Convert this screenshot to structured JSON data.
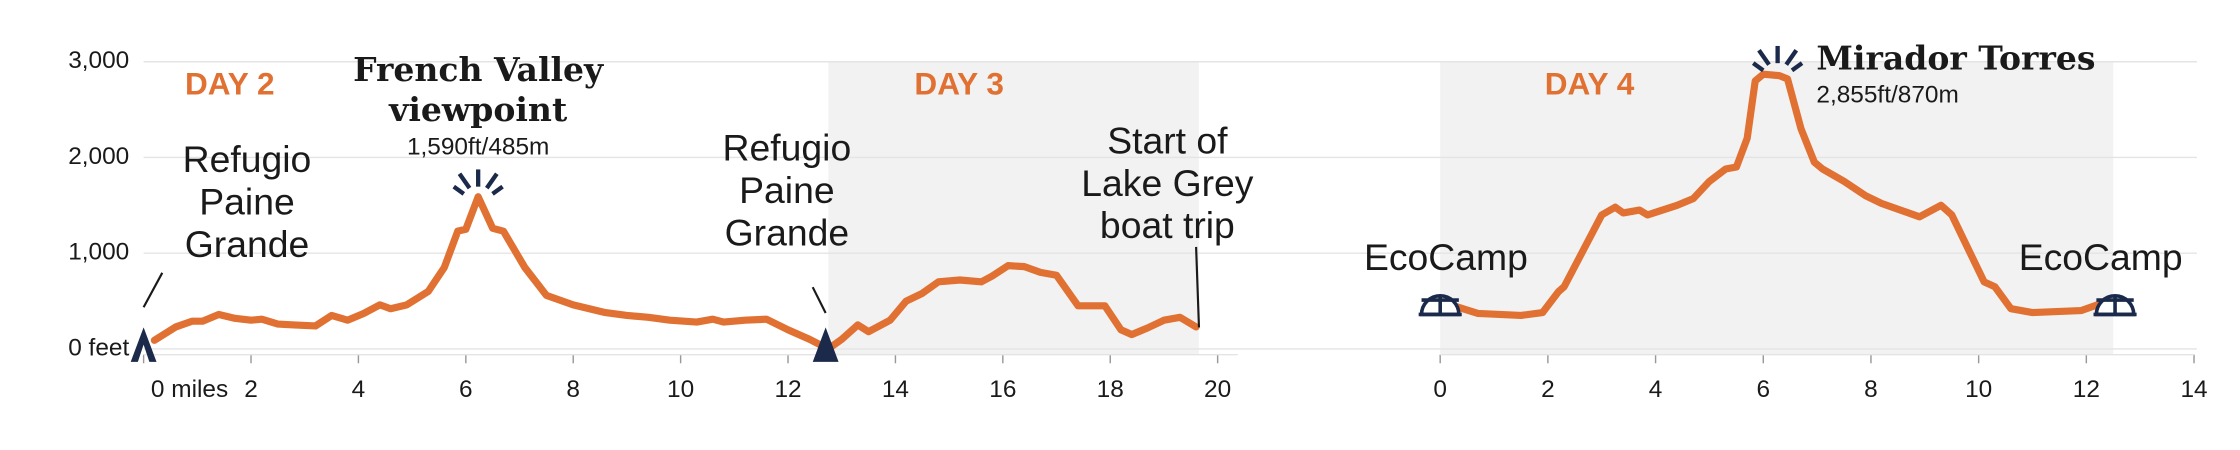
{
  "chart_data": [
    {
      "type": "line",
      "color": "#e07132",
      "grid": true,
      "xlim": [
        0,
        20
      ],
      "ylim": [
        0,
        3000
      ],
      "xticks": [
        {
          "value": 0,
          "label": "0 miles"
        },
        2,
        4,
        6,
        8,
        10,
        12,
        14,
        16,
        18,
        20
      ],
      "yticks": [
        {
          "value": 0,
          "label": "0 feet"
        },
        {
          "value": 1000,
          "label": "1,000"
        },
        {
          "value": 2000,
          "label": "2,000"
        },
        {
          "value": 3000,
          "label": "3,000"
        }
      ],
      "days": [
        {
          "label": "DAY 2"
        },
        {
          "label": "DAY 3",
          "xlim": [
            12.75,
            19.65
          ]
        }
      ],
      "annotations": [
        {
          "text": [
            "Refugio",
            "Paine",
            "Grande"
          ]
        },
        {
          "text": [
            "French Valley",
            "viewpoint"
          ],
          "sub": "1,590ft/485m"
        },
        {
          "text": [
            "Refugio",
            "Paine",
            "Grande"
          ]
        },
        {
          "text": [
            "Start of",
            "Lake Grey",
            "boat trip"
          ]
        }
      ],
      "x": [
        0.2,
        0.6,
        0.9,
        1.1,
        1.4,
        1.7,
        2.0,
        2.2,
        2.5,
        2.8,
        3.2,
        3.5,
        3.8,
        4.1,
        4.4,
        4.6,
        4.9,
        5.3,
        5.6,
        5.85,
        6.0,
        6.23,
        6.5,
        6.7,
        7.1,
        7.5,
        8.0,
        8.3,
        8.6,
        9.0,
        9.4,
        9.8,
        10.3,
        10.6,
        10.8,
        11.2,
        11.6,
        12.0,
        12.4,
        12.75,
        13.0,
        13.3,
        13.5,
        13.9,
        14.2,
        14.5,
        14.8,
        15.2,
        15.6,
        15.8,
        16.1,
        16.4,
        16.7,
        17.0,
        17.4,
        17.9,
        18.2,
        18.4,
        18.7,
        19.0,
        19.3,
        19.6
      ],
      "values": [
        90,
        230,
        290,
        290,
        360,
        320,
        300,
        310,
        260,
        250,
        240,
        350,
        300,
        370,
        460,
        420,
        460,
        600,
        850,
        1230,
        1250,
        1590,
        1260,
        1230,
        850,
        560,
        460,
        420,
        380,
        350,
        330,
        300,
        280,
        310,
        280,
        300,
        310,
        200,
        100,
        0,
        100,
        250,
        180,
        300,
        500,
        580,
        700,
        720,
        700,
        760,
        870,
        860,
        800,
        770,
        450,
        450,
        200,
        150,
        220,
        300,
        330,
        230
      ]
    },
    {
      "type": "line",
      "color": "#e07132",
      "xlim": [
        0,
        14
      ],
      "ylim": [
        0,
        3000
      ],
      "xticks": [
        0,
        2,
        4,
        6,
        8,
        10,
        12,
        14
      ],
      "days": [
        {
          "label": "DAY 4",
          "xlim": [
            0,
            12.5
          ]
        }
      ],
      "annotations": [
        {
          "text": [
            "EcoCamp"
          ]
        },
        {
          "text": [
            "Mirador Torres"
          ],
          "sub": "2,855ft/870m"
        },
        {
          "text": [
            "EcoCamp"
          ]
        }
      ],
      "x": [
        0.25,
        0.7,
        1.5,
        1.9,
        2.2,
        2.3,
        3.0,
        3.25,
        3.4,
        3.7,
        3.85,
        4.4,
        4.7,
        5.0,
        5.3,
        5.5,
        5.7,
        5.85,
        6.0,
        6.3,
        6.45,
        6.7,
        6.95,
        7.1,
        7.5,
        7.9,
        8.2,
        8.9,
        9.1,
        9.3,
        9.5,
        10.1,
        10.3,
        10.6,
        11.0,
        11.9,
        12.4
      ],
      "values": [
        450,
        370,
        350,
        380,
        600,
        650,
        1400,
        1480,
        1420,
        1450,
        1400,
        1500,
        1570,
        1750,
        1880,
        1900,
        2200,
        2800,
        2870,
        2855,
        2820,
        2300,
        1950,
        1880,
        1750,
        1600,
        1520,
        1380,
        1440,
        1500,
        1400,
        700,
        650,
        420,
        380,
        400,
        500
      ]
    }
  ]
}
